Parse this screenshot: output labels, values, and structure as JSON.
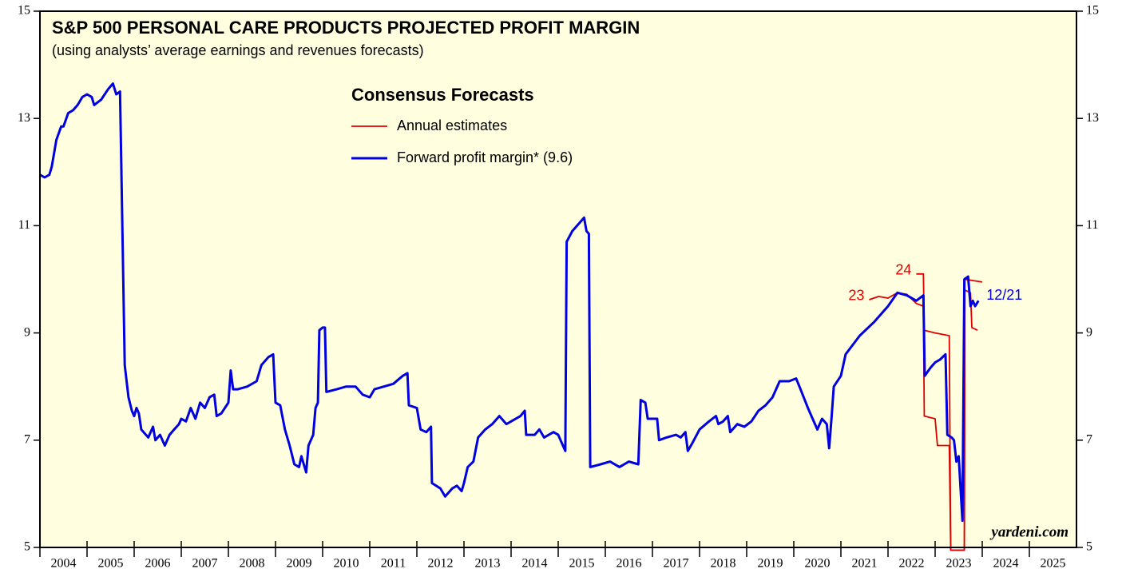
{
  "chart_data": {
    "type": "line",
    "title": "S&P 500 PERSONAL CARE PRODUCTS PROJECTED PROFIT MARGIN",
    "subtitle": "(using analysts’ average earnings and revenues forecasts)",
    "legend_title": "Consensus Forecasts",
    "source": "yardeni.com",
    "xlim": [
      2004,
      2026
    ],
    "xticks": [
      2004,
      2005,
      2006,
      2007,
      2008,
      2009,
      2010,
      2011,
      2012,
      2013,
      2014,
      2015,
      2016,
      2017,
      2018,
      2019,
      2020,
      2021,
      2022,
      2023,
      2024,
      2025
    ],
    "ylim": [
      5,
      15
    ],
    "yticks": [
      5,
      7,
      9,
      11,
      13,
      15
    ],
    "background": "#ffffe0",
    "series": [
      {
        "name": "Annual estimates",
        "color": "#e00000",
        "lines": [
          {
            "label": "23",
            "x": [
              2021.6,
              2021.8,
              2022.0,
              2022.2,
              2022.4,
              2022.6,
              2022.75,
              2022.77,
              2023.0,
              2023.05,
              2023.3,
              2023.33,
              2023.62,
              2023.63,
              2023.75,
              2023.78,
              2023.9
            ],
            "values": [
              9.62,
              9.68,
              9.65,
              9.75,
              9.72,
              9.55,
              9.5,
              7.45,
              7.4,
              6.9,
              6.9,
              4.95,
              4.95,
              9.8,
              9.75,
              9.1,
              9.05
            ]
          },
          {
            "label": "24",
            "x": [
              2022.6,
              2022.75,
              2022.77,
              2023.0,
              2023.3,
              2023.33,
              2023.62,
              2023.63,
              2024.0
            ],
            "values": [
              10.1,
              10.1,
              9.05,
              9.0,
              8.95,
              4.95,
              4.95,
              10.0,
              9.95
            ]
          }
        ]
      },
      {
        "name": "Forward profit margin* (9.6)",
        "color": "#0000e0",
        "end_label": "12/21",
        "x": [
          2004.0,
          2004.1,
          2004.2,
          2004.25,
          2004.35,
          2004.45,
          2004.5,
          2004.6,
          2004.7,
          2004.8,
          2004.9,
          2005.0,
          2005.1,
          2005.15,
          2005.3,
          2005.45,
          2005.55,
          2005.62,
          2005.7,
          2005.8,
          2005.88,
          2005.95,
          2006.0,
          2006.05,
          2006.1,
          2006.15,
          2006.2,
          2006.3,
          2006.4,
          2006.45,
          2006.55,
          2006.65,
          2006.75,
          2006.85,
          2006.95,
          2007.0,
          2007.1,
          2007.2,
          2007.3,
          2007.4,
          2007.5,
          2007.6,
          2007.7,
          2007.75,
          2007.85,
          2008.0,
          2008.05,
          2008.1,
          2008.2,
          2008.4,
          2008.6,
          2008.7,
          2008.85,
          2008.95,
          2009.0,
          2009.1,
          2009.2,
          2009.3,
          2009.4,
          2009.5,
          2009.55,
          2009.65,
          2009.7,
          2009.8,
          2009.85,
          2009.9,
          2009.93,
          2010.0,
          2010.05,
          2010.08,
          2010.3,
          2010.5,
          2010.7,
          2010.85,
          2011.0,
          2011.1,
          2011.3,
          2011.5,
          2011.7,
          2011.8,
          2011.83,
          2012.0,
          2012.08,
          2012.2,
          2012.3,
          2012.32,
          2012.5,
          2012.6,
          2012.75,
          2012.85,
          2012.95,
          2013.0,
          2013.08,
          2013.2,
          2013.3,
          2013.45,
          2013.6,
          2013.75,
          2013.9,
          2014.0,
          2014.2,
          2014.29,
          2014.32,
          2014.5,
          2014.6,
          2014.7,
          2014.9,
          2015.0,
          2015.1,
          2015.15,
          2015.18,
          2015.3,
          2015.45,
          2015.55,
          2015.6,
          2015.65,
          2015.68,
          2015.9,
          2016.1,
          2016.3,
          2016.5,
          2016.7,
          2016.75,
          2016.85,
          2016.9,
          2017.1,
          2017.14,
          2017.3,
          2017.5,
          2017.6,
          2017.7,
          2017.75,
          2017.85,
          2018.0,
          2018.2,
          2018.35,
          2018.4,
          2018.5,
          2018.6,
          2018.65,
          2018.8,
          2018.95,
          2019.1,
          2019.25,
          2019.4,
          2019.55,
          2019.7,
          2019.9,
          2020.05,
          2020.12,
          2020.3,
          2020.4,
          2020.5,
          2020.6,
          2020.7,
          2020.75,
          2020.8,
          2020.85,
          2021.0,
          2021.1,
          2021.4,
          2021.7,
          2022.0,
          2022.2,
          2022.4,
          2022.6,
          2022.75,
          2022.78,
          2022.9,
          2023.0,
          2023.1,
          2023.22,
          2023.26,
          2023.35,
          2023.4,
          2023.45,
          2023.5,
          2023.58,
          2023.62,
          2023.7,
          2023.75,
          2023.8,
          2023.85,
          2023.92
        ],
        "values": [
          11.95,
          11.9,
          11.95,
          12.1,
          12.6,
          12.85,
          12.85,
          13.1,
          13.15,
          13.25,
          13.4,
          13.45,
          13.4,
          13.25,
          13.35,
          13.55,
          13.65,
          13.45,
          13.5,
          8.4,
          7.8,
          7.55,
          7.45,
          7.6,
          7.5,
          7.2,
          7.15,
          7.05,
          7.25,
          7.0,
          7.1,
          6.9,
          7.1,
          7.2,
          7.3,
          7.4,
          7.35,
          7.6,
          7.4,
          7.7,
          7.6,
          7.8,
          7.85,
          7.45,
          7.5,
          7.7,
          8.3,
          7.95,
          7.95,
          8.0,
          8.1,
          8.4,
          8.55,
          8.6,
          7.7,
          7.65,
          7.2,
          6.9,
          6.55,
          6.5,
          6.7,
          6.4,
          6.9,
          7.1,
          7.6,
          7.7,
          9.05,
          9.1,
          9.1,
          7.9,
          7.95,
          8.0,
          8.0,
          7.85,
          7.8,
          7.95,
          8.0,
          8.05,
          8.2,
          8.25,
          7.65,
          7.6,
          7.2,
          7.15,
          7.25,
          6.2,
          6.1,
          5.95,
          6.1,
          6.15,
          6.05,
          6.2,
          6.5,
          6.6,
          7.05,
          7.2,
          7.3,
          7.45,
          7.3,
          7.35,
          7.45,
          7.55,
          7.1,
          7.1,
          7.2,
          7.05,
          7.15,
          7.1,
          6.9,
          6.8,
          10.7,
          10.9,
          11.05,
          11.15,
          10.9,
          10.85,
          6.5,
          6.55,
          6.6,
          6.5,
          6.6,
          6.55,
          7.75,
          7.7,
          7.4,
          7.4,
          7.0,
          7.05,
          7.1,
          7.05,
          7.15,
          6.8,
          6.95,
          7.2,
          7.35,
          7.45,
          7.3,
          7.35,
          7.45,
          7.15,
          7.3,
          7.25,
          7.35,
          7.55,
          7.65,
          7.8,
          8.1,
          8.1,
          8.15,
          8.0,
          7.6,
          7.4,
          7.2,
          7.4,
          7.3,
          6.85,
          7.4,
          8.0,
          8.2,
          8.6,
          8.95,
          9.2,
          9.5,
          9.75,
          9.7,
          9.6,
          9.7,
          8.2,
          8.35,
          8.45,
          8.5,
          8.6,
          7.1,
          7.05,
          7.0,
          6.6,
          6.7,
          5.5,
          10.0,
          10.05,
          9.5,
          9.6,
          9.5,
          9.6
        ]
      }
    ]
  }
}
